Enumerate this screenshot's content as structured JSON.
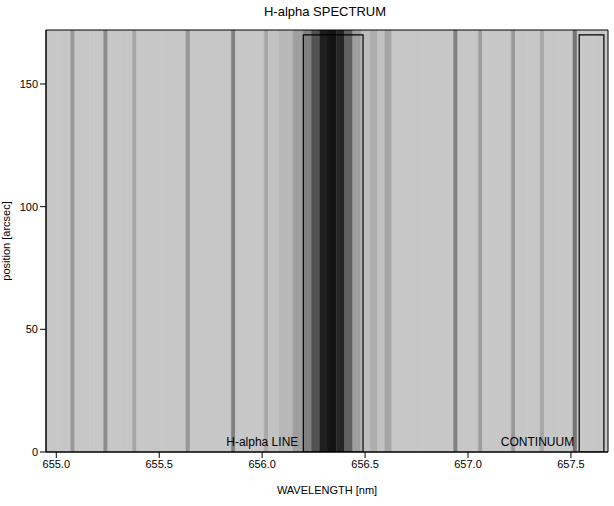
{
  "chart_data": {
    "type": "spectrum_image",
    "title": "H-alpha SPECTRUM",
    "x_label": "WAVELENGTH [nm]",
    "y_label": "position [arcsec]",
    "xlim": [
      654.95,
      657.68
    ],
    "ylim": [
      0,
      172
    ],
    "xticks": [
      {
        "value": 655,
        "label": "655.0"
      },
      {
        "value": 655.5,
        "label": "655.5"
      },
      {
        "value": 656,
        "label": "656.0"
      },
      {
        "value": 656.5,
        "label": "656.5"
      },
      {
        "value": 657,
        "label": "657.0"
      },
      {
        "value": 657.5,
        "label": "657.5"
      }
    ],
    "yticks": [
      0,
      50,
      100,
      150
    ],
    "grid": false,
    "x": [
      654.95,
      655.06,
      655.08,
      655.1,
      655.22,
      655.24,
      655.26,
      655.36,
      655.38,
      655.4,
      655.62,
      655.64,
      655.66,
      655.84,
      655.86,
      655.88,
      656.0,
      656.02,
      656.04,
      656.12,
      656.18,
      656.22,
      656.26,
      656.3,
      656.34,
      656.38,
      656.42,
      656.46,
      656.5,
      656.55,
      656.57,
      656.62,
      656.64,
      656.92,
      656.94,
      656.96,
      657.04,
      657.06,
      657.08,
      657.2,
      657.22,
      657.24,
      657.34,
      657.36,
      657.38,
      657.5,
      657.52,
      657.54,
      657.68
    ],
    "values": [
      0.78,
      0.78,
      0.6,
      0.78,
      0.78,
      0.55,
      0.78,
      0.78,
      0.65,
      0.78,
      0.78,
      0.6,
      0.78,
      0.78,
      0.5,
      0.78,
      0.78,
      0.65,
      0.76,
      0.72,
      0.62,
      0.5,
      0.32,
      0.12,
      0.08,
      0.15,
      0.38,
      0.62,
      0.74,
      0.68,
      0.76,
      0.65,
      0.78,
      0.78,
      0.5,
      0.78,
      0.78,
      0.62,
      0.78,
      0.78,
      0.6,
      0.78,
      0.78,
      0.65,
      0.78,
      0.78,
      0.45,
      0.78,
      0.78
    ],
    "regions": [
      {
        "label": "H-alpha LINE",
        "x": [
          656.2,
          656.49
        ],
        "y": [
          0,
          170
        ]
      },
      {
        "label": "CONTINUUM",
        "x": [
          657.54,
          657.66
        ],
        "y": [
          0,
          170
        ]
      }
    ]
  }
}
